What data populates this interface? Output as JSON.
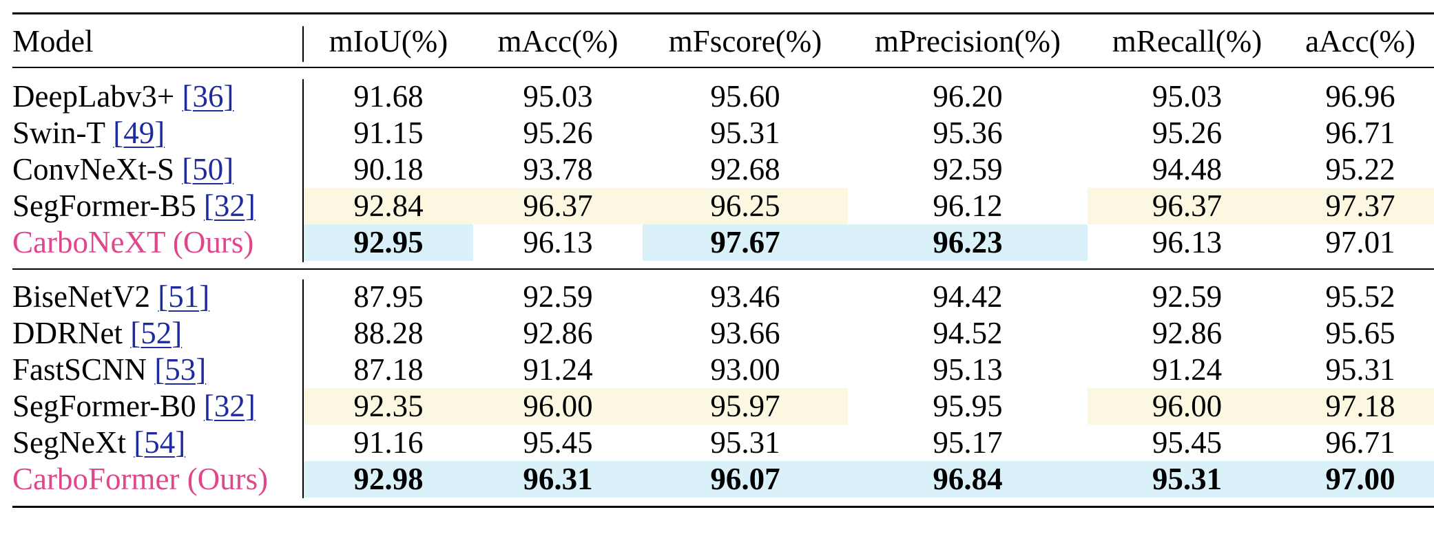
{
  "columns": [
    "Model",
    "mIoU(%)",
    "mAcc(%)",
    "mFscore(%)",
    "mPrecision(%)",
    "mRecall(%)",
    "aAcc(%)"
  ],
  "groups": [
    {
      "rows": [
        {
          "model": "DeepLabv3+",
          "cite": "[36]",
          "ours": false,
          "values": [
            "91.68",
            "95.03",
            "95.60",
            "96.20",
            "95.03",
            "96.96"
          ],
          "hl": [
            "",
            "",
            "",
            "",
            "",
            ""
          ],
          "bold": [
            false,
            false,
            false,
            false,
            false,
            false
          ]
        },
        {
          "model": "Swin-T",
          "cite": "[49]",
          "ours": false,
          "values": [
            "91.15",
            "95.26",
            "95.31",
            "95.36",
            "95.26",
            "96.71"
          ],
          "hl": [
            "",
            "",
            "",
            "",
            "",
            ""
          ],
          "bold": [
            false,
            false,
            false,
            false,
            false,
            false
          ]
        },
        {
          "model": "ConvNeXt-S",
          "cite": "[50]",
          "ours": false,
          "values": [
            "90.18",
            "93.78",
            "92.68",
            "92.59",
            "94.48",
            "95.22"
          ],
          "hl": [
            "",
            "",
            "",
            "",
            "",
            ""
          ],
          "bold": [
            false,
            false,
            false,
            false,
            false,
            false
          ]
        },
        {
          "model": "SegFormer-B5",
          "cite": "[32]",
          "ours": false,
          "values": [
            "92.84",
            "96.37",
            "96.25",
            "96.12",
            "96.37",
            "97.37"
          ],
          "hl": [
            "yellow",
            "yellow",
            "yellow",
            "",
            "yellow",
            "yellow"
          ],
          "bold": [
            false,
            false,
            false,
            false,
            false,
            false
          ]
        },
        {
          "model": "CarboNeXT (Ours)",
          "cite": "",
          "ours": true,
          "values": [
            "92.95",
            "96.13",
            "97.67",
            "96.23",
            "96.13",
            "97.01"
          ],
          "hl": [
            "blue",
            "",
            "blue",
            "blue",
            "",
            ""
          ],
          "bold": [
            true,
            false,
            true,
            true,
            false,
            false
          ]
        }
      ]
    },
    {
      "rows": [
        {
          "model": "BiseNetV2",
          "cite": "[51]",
          "ours": false,
          "values": [
            "87.95",
            "92.59",
            "93.46",
            "94.42",
            "92.59",
            "95.52"
          ],
          "hl": [
            "",
            "",
            "",
            "",
            "",
            ""
          ],
          "bold": [
            false,
            false,
            false,
            false,
            false,
            false
          ]
        },
        {
          "model": "DDRNet",
          "cite": "[52]",
          "ours": false,
          "values": [
            "88.28",
            "92.86",
            "93.66",
            "94.52",
            "92.86",
            "95.65"
          ],
          "hl": [
            "",
            "",
            "",
            "",
            "",
            ""
          ],
          "bold": [
            false,
            false,
            false,
            false,
            false,
            false
          ]
        },
        {
          "model": "FastSCNN",
          "cite": "[53]",
          "ours": false,
          "values": [
            "87.18",
            "91.24",
            "93.00",
            "95.13",
            "91.24",
            "95.31"
          ],
          "hl": [
            "",
            "",
            "",
            "",
            "",
            ""
          ],
          "bold": [
            false,
            false,
            false,
            false,
            false,
            false
          ]
        },
        {
          "model": "SegFormer-B0",
          "cite": "[32]",
          "ours": false,
          "values": [
            "92.35",
            "96.00",
            "95.97",
            "95.95",
            "96.00",
            "97.18"
          ],
          "hl": [
            "yellow",
            "yellow",
            "yellow",
            "",
            "yellow",
            "yellow"
          ],
          "bold": [
            false,
            false,
            false,
            false,
            false,
            false
          ]
        },
        {
          "model": "SegNeXt",
          "cite": "[54]",
          "ours": false,
          "values": [
            "91.16",
            "95.45",
            "95.31",
            "95.17",
            "95.45",
            "96.71"
          ],
          "hl": [
            "",
            "",
            "",
            "",
            "",
            ""
          ],
          "bold": [
            false,
            false,
            false,
            false,
            false,
            false
          ]
        },
        {
          "model": "CarboFormer (Ours)",
          "cite": "",
          "ours": true,
          "values": [
            "92.98",
            "96.31",
            "96.07",
            "96.84",
            "95.31",
            "97.00"
          ],
          "hl": [
            "blue",
            "blue",
            "blue",
            "blue",
            "blue",
            "blue"
          ],
          "bold": [
            true,
            true,
            true,
            true,
            true,
            true
          ]
        }
      ]
    }
  ]
}
